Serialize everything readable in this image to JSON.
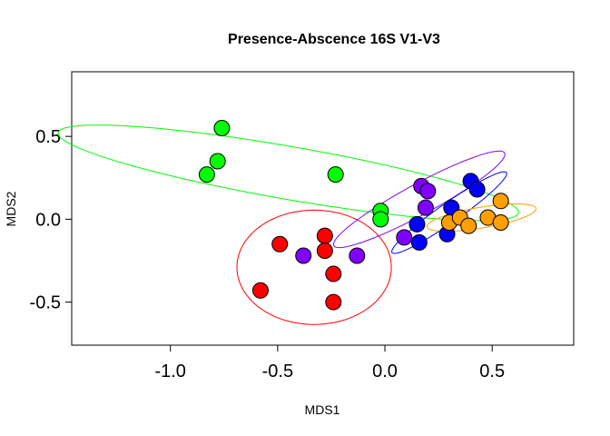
{
  "chart_data": {
    "type": "scatter",
    "title": "Presence-Abscence  16S V1-V3",
    "xlabel": "MDS1",
    "ylabel": "MDS2",
    "xlim": [
      -1.46,
      0.88
    ],
    "ylim": [
      -0.76,
      0.89
    ],
    "x_ticks": [
      -1.0,
      -0.5,
      0.0,
      0.5
    ],
    "x_tick_labels": [
      "-1.0",
      "-0.5",
      "0.0",
      "0.5"
    ],
    "y_ticks": [
      -0.5,
      0.0,
      0.5
    ],
    "y_tick_labels": [
      "-0.5",
      "0.0",
      "0.5"
    ],
    "grid": false,
    "legend": "none",
    "series": [
      {
        "color": "#FF0000",
        "points": [
          [
            -0.58,
            -0.43
          ],
          [
            -0.49,
            -0.15
          ],
          [
            -0.28,
            -0.1
          ],
          [
            -0.28,
            -0.19
          ],
          [
            -0.24,
            -0.33
          ],
          [
            -0.24,
            -0.5
          ]
        ],
        "ellipse": {
          "cx": -0.33,
          "cy": -0.29,
          "rx": 0.36,
          "ry": 0.345,
          "angle": 0
        }
      },
      {
        "color": "#00FF00",
        "points": [
          [
            -0.76,
            0.55
          ],
          [
            -0.78,
            0.35
          ],
          [
            -0.83,
            0.27
          ],
          [
            -0.23,
            0.27
          ],
          [
            -0.02,
            0.05
          ],
          [
            -0.02,
            0.0
          ]
        ],
        "ellipse": {
          "cx": -0.45,
          "cy": 0.28,
          "rx": 1.1,
          "ry": 0.158,
          "angle": -12.8
        }
      },
      {
        "color": "#8000FF",
        "points": [
          [
            -0.38,
            -0.22
          ],
          [
            -0.13,
            -0.22
          ],
          [
            0.09,
            -0.11
          ],
          [
            0.17,
            0.2
          ],
          [
            0.2,
            0.17
          ],
          [
            0.19,
            0.07
          ]
        ],
        "ellipse": {
          "cx": 0.16,
          "cy": 0.12,
          "rx": 0.487,
          "ry": 0.086,
          "angle": 35.5
        }
      },
      {
        "color": "#0000FF",
        "points": [
          [
            0.15,
            -0.03
          ],
          [
            0.16,
            -0.14
          ],
          [
            0.29,
            -0.09
          ],
          [
            0.31,
            0.07
          ],
          [
            0.4,
            0.23
          ],
          [
            0.43,
            0.18
          ]
        ],
        "ellipse": {
          "cx": 0.3,
          "cy": 0.04,
          "rx": 0.36,
          "ry": 0.054,
          "angle": 42.5
        }
      },
      {
        "color": "#FF9F00",
        "points": [
          [
            0.3,
            -0.02
          ],
          [
            0.35,
            0.01
          ],
          [
            0.39,
            -0.04
          ],
          [
            0.48,
            0.01
          ],
          [
            0.54,
            0.11
          ],
          [
            0.54,
            -0.02
          ]
        ],
        "ellipse": {
          "cx": 0.45,
          "cy": 0.01,
          "rx": 0.26,
          "ry": 0.062,
          "angle": 12.5
        }
      }
    ]
  }
}
